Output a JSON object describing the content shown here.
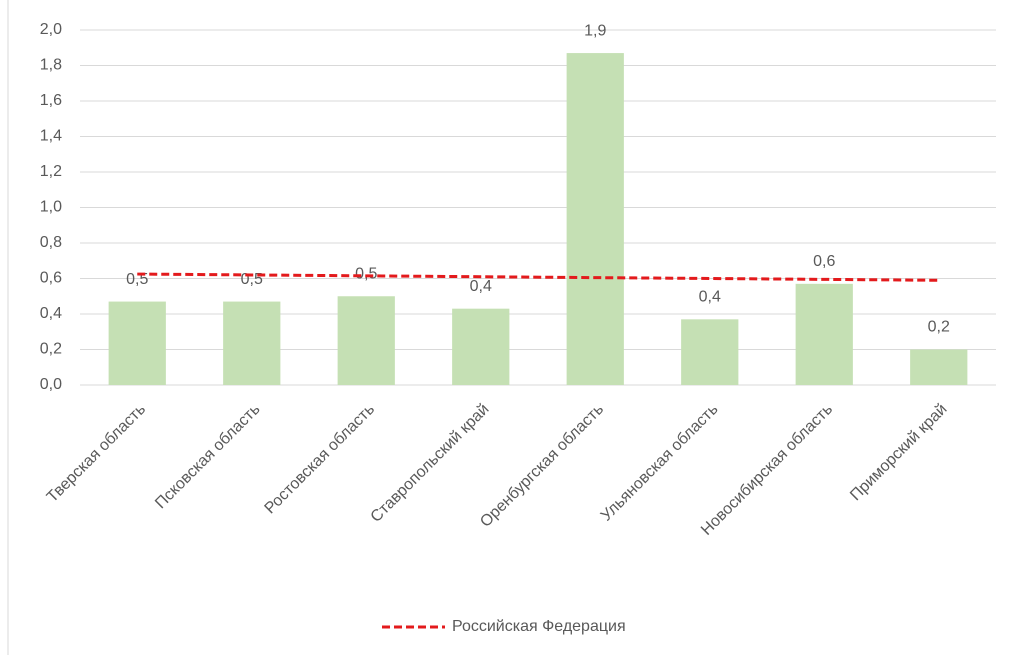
{
  "chart_data": {
    "type": "bar",
    "categories": [
      "Тверская область",
      "Псковская область",
      "Ростовская область",
      "Ставропольский край",
      "Оренбургская область",
      "Ульяновская область",
      "Новосибирская область",
      "Приморский край"
    ],
    "series": [
      {
        "type": "bar",
        "color": "#c5e0b4",
        "values": [
          0.47,
          0.47,
          0.5,
          0.43,
          1.87,
          0.37,
          0.57,
          0.2
        ],
        "value_labels": [
          "0,5",
          "0,5",
          "0,5",
          "0,4",
          "1,9",
          "0,4",
          "0,6",
          "0,2"
        ]
      },
      {
        "name": "Российская Федерация",
        "type": "line",
        "color": "#e31a1c",
        "dashed": true,
        "values": [
          0.625,
          0.62,
          0.615,
          0.61,
          0.605,
          0.6,
          0.595,
          0.59
        ]
      }
    ],
    "ylim": [
      0,
      2
    ],
    "yticks": [
      {
        "value": 0,
        "label": "0,0"
      },
      {
        "value": 0.2,
        "label": "0,2"
      },
      {
        "value": 0.4,
        "label": "0,4"
      },
      {
        "value": 0.6,
        "label": "0,6"
      },
      {
        "value": 0.8,
        "label": "0,8"
      },
      {
        "value": 1,
        "label": "1,0"
      },
      {
        "value": 1.2,
        "label": "1,2"
      },
      {
        "value": 1.4,
        "label": "1,4"
      },
      {
        "value": 1.6,
        "label": "1,6"
      },
      {
        "value": 1.8,
        "label": "1,8"
      },
      {
        "value": 2,
        "label": "2,0"
      }
    ],
    "grid": true,
    "legend": "bottom"
  }
}
